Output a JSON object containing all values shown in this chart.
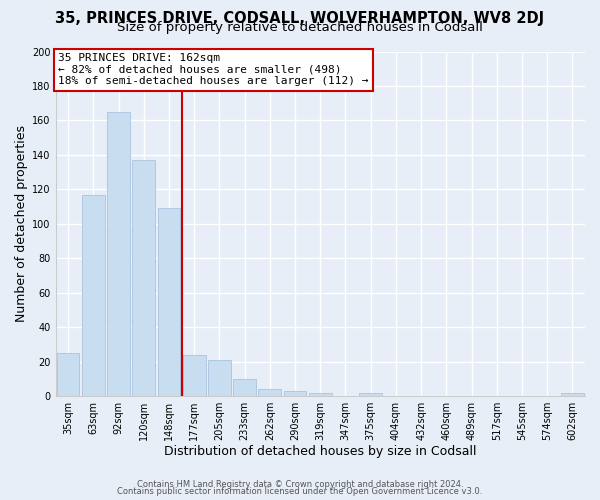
{
  "title1": "35, PRINCES DRIVE, CODSALL, WOLVERHAMPTON, WV8 2DJ",
  "title2": "Size of property relative to detached houses in Codsall",
  "xlabel": "Distribution of detached houses by size in Codsall",
  "ylabel": "Number of detached properties",
  "bar_labels": [
    "35sqm",
    "63sqm",
    "92sqm",
    "120sqm",
    "148sqm",
    "177sqm",
    "205sqm",
    "233sqm",
    "262sqm",
    "290sqm",
    "319sqm",
    "347sqm",
    "375sqm",
    "404sqm",
    "432sqm",
    "460sqm",
    "489sqm",
    "517sqm",
    "545sqm",
    "574sqm",
    "602sqm"
  ],
  "bar_values": [
    25,
    117,
    165,
    137,
    109,
    24,
    21,
    10,
    4,
    3,
    2,
    0,
    2,
    0,
    0,
    0,
    0,
    0,
    0,
    0,
    2
  ],
  "bar_color": "#c9ddf0",
  "bar_edge_color": "#a8c4e0",
  "ylim": [
    0,
    200
  ],
  "yticks": [
    0,
    20,
    40,
    60,
    80,
    100,
    120,
    140,
    160,
    180,
    200
  ],
  "vline_x": 4.5,
  "vline_color": "#cc0000",
  "annotation_title": "35 PRINCES DRIVE: 162sqm",
  "annotation_line1": "← 82% of detached houses are smaller (498)",
  "annotation_line2": "18% of semi-detached houses are larger (112) →",
  "footer1": "Contains HM Land Registry data © Crown copyright and database right 2024.",
  "footer2": "Contains public sector information licensed under the Open Government Licence v3.0.",
  "fig_bg_color": "#e8eef7",
  "plot_bg_color": "#e8eef7",
  "grid_color": "#ffffff",
  "title1_fontsize": 10.5,
  "title2_fontsize": 9.5,
  "tick_fontsize": 7,
  "label_fontsize": 9,
  "footer_fontsize": 6,
  "ann_fontsize": 8
}
